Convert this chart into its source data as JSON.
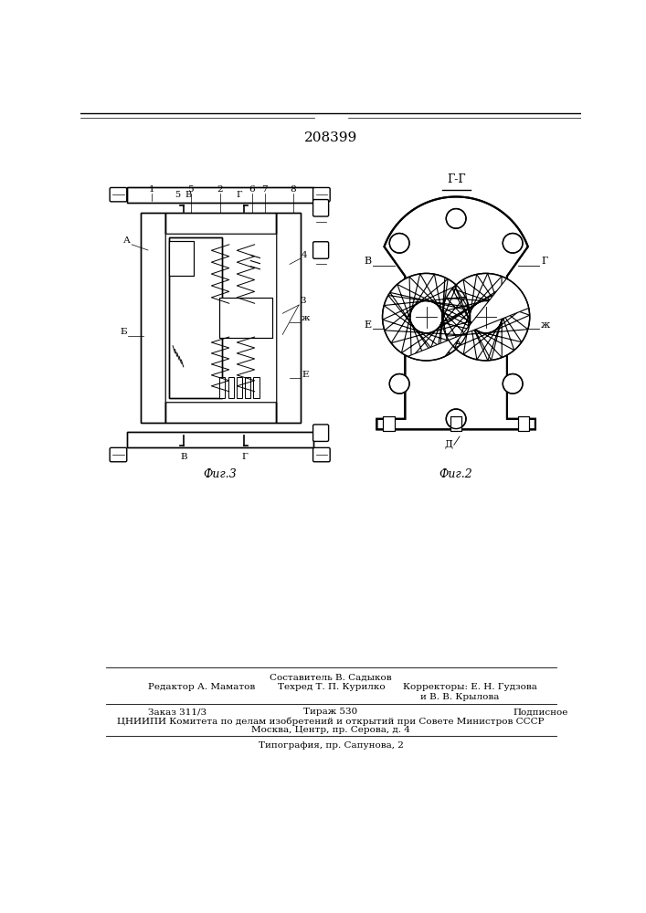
{
  "patent_number": "208399",
  "fig3_label": "Фиг.3",
  "fig2_label": "Фиг.2",
  "gg_label": "Г-Г",
  "footer_line1": "Составитель В. Садыков",
  "footer_line2_col1": "Редактор А. Маматов",
  "footer_line2_col2": "Техред Т. П. Курилко",
  "footer_line2_col3": "Корректоры: Е. Н. Гудзова",
  "footer_line2_col3b": "и В. В. Крылова",
  "footer_line3a": "Заказ 311/3",
  "footer_line3b": "Тираж 530",
  "footer_line3c": "Подписное",
  "footer_line4": "ЦНИИПИ Комитета по делам изобретений и открытий при Совете Министров СССР",
  "footer_line5": "Москва, Центр, пр. Серова, д. 4",
  "footer_line6": "Типография, пр. Сапунова, 2",
  "bg_color": "#ffffff"
}
